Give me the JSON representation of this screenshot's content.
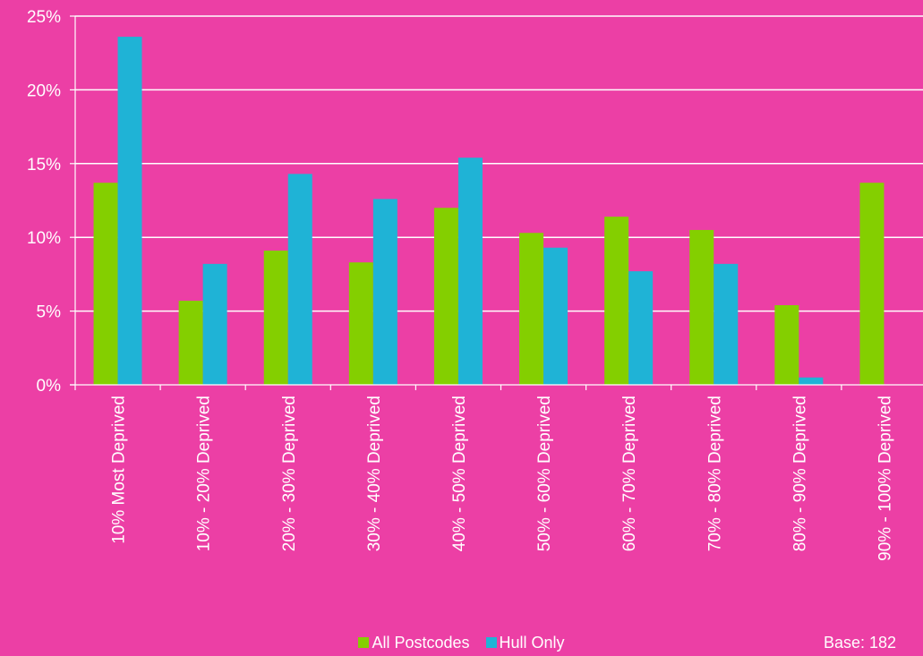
{
  "chart_data": {
    "type": "bar",
    "categories": [
      "10% Most Deprived",
      "10% - 20% Deprived",
      "20% - 30% Deprived",
      "30% - 40% Deprived",
      "40% - 50% Deprived",
      "50% - 60% Deprived",
      "60% - 70% Deprived",
      "70% - 80% Deprived",
      "80% - 90% Deprived",
      "90% - 100% Deprived"
    ],
    "series": [
      {
        "name": "All Postcodes",
        "color": "#84CF00",
        "values": [
          13.7,
          5.7,
          9.1,
          8.3,
          12.0,
          10.3,
          11.4,
          10.5,
          5.4,
          13.7
        ]
      },
      {
        "name": "Hull Only",
        "color": "#1FB3D6",
        "values": [
          23.6,
          8.2,
          14.3,
          12.6,
          15.4,
          9.3,
          7.7,
          8.2,
          0.5,
          0
        ]
      }
    ],
    "y_ticks": [
      "0%",
      "5%",
      "10%",
      "15%",
      "20%",
      "25%"
    ],
    "ylim": [
      0,
      25
    ],
    "grid": true,
    "legend_position": "bottom"
  },
  "legend": {
    "items": [
      {
        "label": "All Postcodes",
        "color": "#84CF00"
      },
      {
        "label": "Hull Only",
        "color": "#1FB3D6"
      }
    ]
  },
  "base_note": "Base: 182"
}
